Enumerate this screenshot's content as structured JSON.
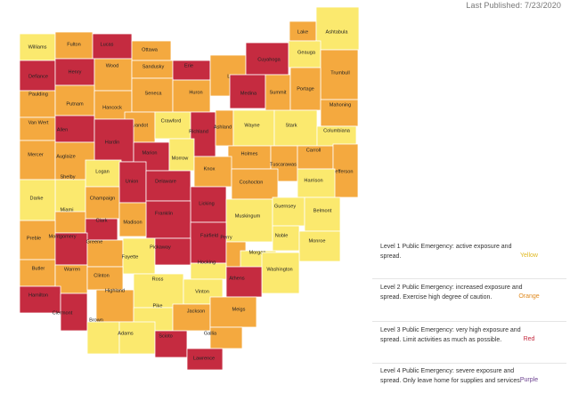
{
  "header": {
    "published": "Last Published: 7/23/2020"
  },
  "colors": {
    "yellow": "#fbe96e",
    "orange": "#f4a93f",
    "red": "#c52b40",
    "border": "#ffffff",
    "yellow_text": "#e0b820",
    "orange_text": "#e08a1f",
    "red_text": "#c52b40",
    "purple_text": "#6b3f8f"
  },
  "map": {
    "counties": [
      {
        "name": "Williams",
        "level": "yellow"
      },
      {
        "name": "Fulton",
        "level": "orange"
      },
      {
        "name": "Lucas",
        "level": "red"
      },
      {
        "name": "Ottawa",
        "level": "orange"
      },
      {
        "name": "Lake",
        "level": "orange"
      },
      {
        "name": "Ashtabula",
        "level": "yellow"
      },
      {
        "name": "Defiance",
        "level": "red"
      },
      {
        "name": "Henry",
        "level": "red"
      },
      {
        "name": "Wood",
        "level": "orange"
      },
      {
        "name": "Sandusky",
        "level": "orange"
      },
      {
        "name": "Erie",
        "level": "red"
      },
      {
        "name": "Lorain",
        "level": "orange"
      },
      {
        "name": "Cuyahoga",
        "level": "red"
      },
      {
        "name": "Geauga",
        "level": "yellow"
      },
      {
        "name": "Trumbull",
        "level": "orange"
      },
      {
        "name": "Paulding",
        "level": "orange"
      },
      {
        "name": "Putnam",
        "level": "orange"
      },
      {
        "name": "Hancock",
        "level": "orange"
      },
      {
        "name": "Seneca",
        "level": "orange"
      },
      {
        "name": "Huron",
        "level": "orange"
      },
      {
        "name": "Medina",
        "level": "red"
      },
      {
        "name": "Summit",
        "level": "orange"
      },
      {
        "name": "Portage",
        "level": "orange"
      },
      {
        "name": "Mahoning",
        "level": "orange"
      },
      {
        "name": "Van Wert",
        "level": "orange"
      },
      {
        "name": "Allen",
        "level": "red"
      },
      {
        "name": "Wyandot",
        "level": "orange"
      },
      {
        "name": "Crawford",
        "level": "yellow"
      },
      {
        "name": "Richland",
        "level": "red"
      },
      {
        "name": "Ashland",
        "level": "orange"
      },
      {
        "name": "Wayne",
        "level": "yellow"
      },
      {
        "name": "Stark",
        "level": "yellow"
      },
      {
        "name": "Columbiana",
        "level": "yellow"
      },
      {
        "name": "Hardin",
        "level": "red"
      },
      {
        "name": "Marion",
        "level": "red"
      },
      {
        "name": "Morrow",
        "level": "yellow"
      },
      {
        "name": "Mercer",
        "level": "orange"
      },
      {
        "name": "Auglaize",
        "level": "orange"
      },
      {
        "name": "Holmes",
        "level": "orange"
      },
      {
        "name": "Tuscarawas",
        "level": "orange"
      },
      {
        "name": "Carroll",
        "level": "orange"
      },
      {
        "name": "Knox",
        "level": "orange"
      },
      {
        "name": "Jefferson",
        "level": "orange"
      },
      {
        "name": "Logan",
        "level": "yellow"
      },
      {
        "name": "Shelby",
        "level": "yellow"
      },
      {
        "name": "Union",
        "level": "red"
      },
      {
        "name": "Delaware",
        "level": "red"
      },
      {
        "name": "Coshocton",
        "level": "orange"
      },
      {
        "name": "Harrison",
        "level": "yellow"
      },
      {
        "name": "Darke",
        "level": "yellow"
      },
      {
        "name": "Champaign",
        "level": "orange"
      },
      {
        "name": "Licking",
        "level": "red"
      },
      {
        "name": "Miami",
        "level": "orange"
      },
      {
        "name": "Clark",
        "level": "red"
      },
      {
        "name": "Franklin",
        "level": "red"
      },
      {
        "name": "Madison",
        "level": "orange"
      },
      {
        "name": "Muskingum",
        "level": "yellow"
      },
      {
        "name": "Guernsey",
        "level": "yellow"
      },
      {
        "name": "Belmont",
        "level": "yellow"
      },
      {
        "name": "Preble",
        "level": "orange"
      },
      {
        "name": "Montgomery",
        "level": "red"
      },
      {
        "name": "Greene",
        "level": "orange"
      },
      {
        "name": "Fairfield",
        "level": "red"
      },
      {
        "name": "Perry",
        "level": "orange"
      },
      {
        "name": "Noble",
        "level": "yellow"
      },
      {
        "name": "Monroe",
        "level": "yellow"
      },
      {
        "name": "Fayette",
        "level": "yellow"
      },
      {
        "name": "Pickaway",
        "level": "red"
      },
      {
        "name": "Hocking",
        "level": "yellow"
      },
      {
        "name": "Morgan",
        "level": "yellow"
      },
      {
        "name": "Butler",
        "level": "orange"
      },
      {
        "name": "Warren",
        "level": "orange"
      },
      {
        "name": "Clinton",
        "level": "orange"
      },
      {
        "name": "Washington",
        "level": "yellow"
      },
      {
        "name": "Ross",
        "level": "yellow"
      },
      {
        "name": "Athens",
        "level": "red"
      },
      {
        "name": "Vinton",
        "level": "yellow"
      },
      {
        "name": "Highland",
        "level": "orange"
      },
      {
        "name": "Hamilton",
        "level": "red"
      },
      {
        "name": "Clermont",
        "level": "red"
      },
      {
        "name": "Pike",
        "level": "yellow"
      },
      {
        "name": "Jackson",
        "level": "orange"
      },
      {
        "name": "Meigs",
        "level": "orange"
      },
      {
        "name": "Gallia",
        "level": "orange"
      },
      {
        "name": "Brown",
        "level": "yellow"
      },
      {
        "name": "Adams",
        "level": "yellow"
      },
      {
        "name": "Scioto",
        "level": "red"
      },
      {
        "name": "Lawrence",
        "level": "red"
      }
    ]
  },
  "legend": {
    "items": [
      {
        "text": "Level 1 Public Emergency: active exposure and spread.",
        "color_name": "Yellow",
        "color_key": "yellow_text"
      },
      {
        "text": "Level 2 Public Emergency: increased exposure and spread. Exercise high degree of caution.",
        "color_name": "Orange",
        "color_key": "orange_text"
      },
      {
        "text": "Level 3 Public Emergency: very high exposure and spread. Limit activities as much as possible.",
        "color_name": "Red",
        "color_key": "red_text"
      },
      {
        "text": "Level 4 Public Emergency: severe exposure and spread. Only leave home for supplies and services.",
        "color_name": "Purple",
        "color_key": "purple_text"
      }
    ]
  }
}
